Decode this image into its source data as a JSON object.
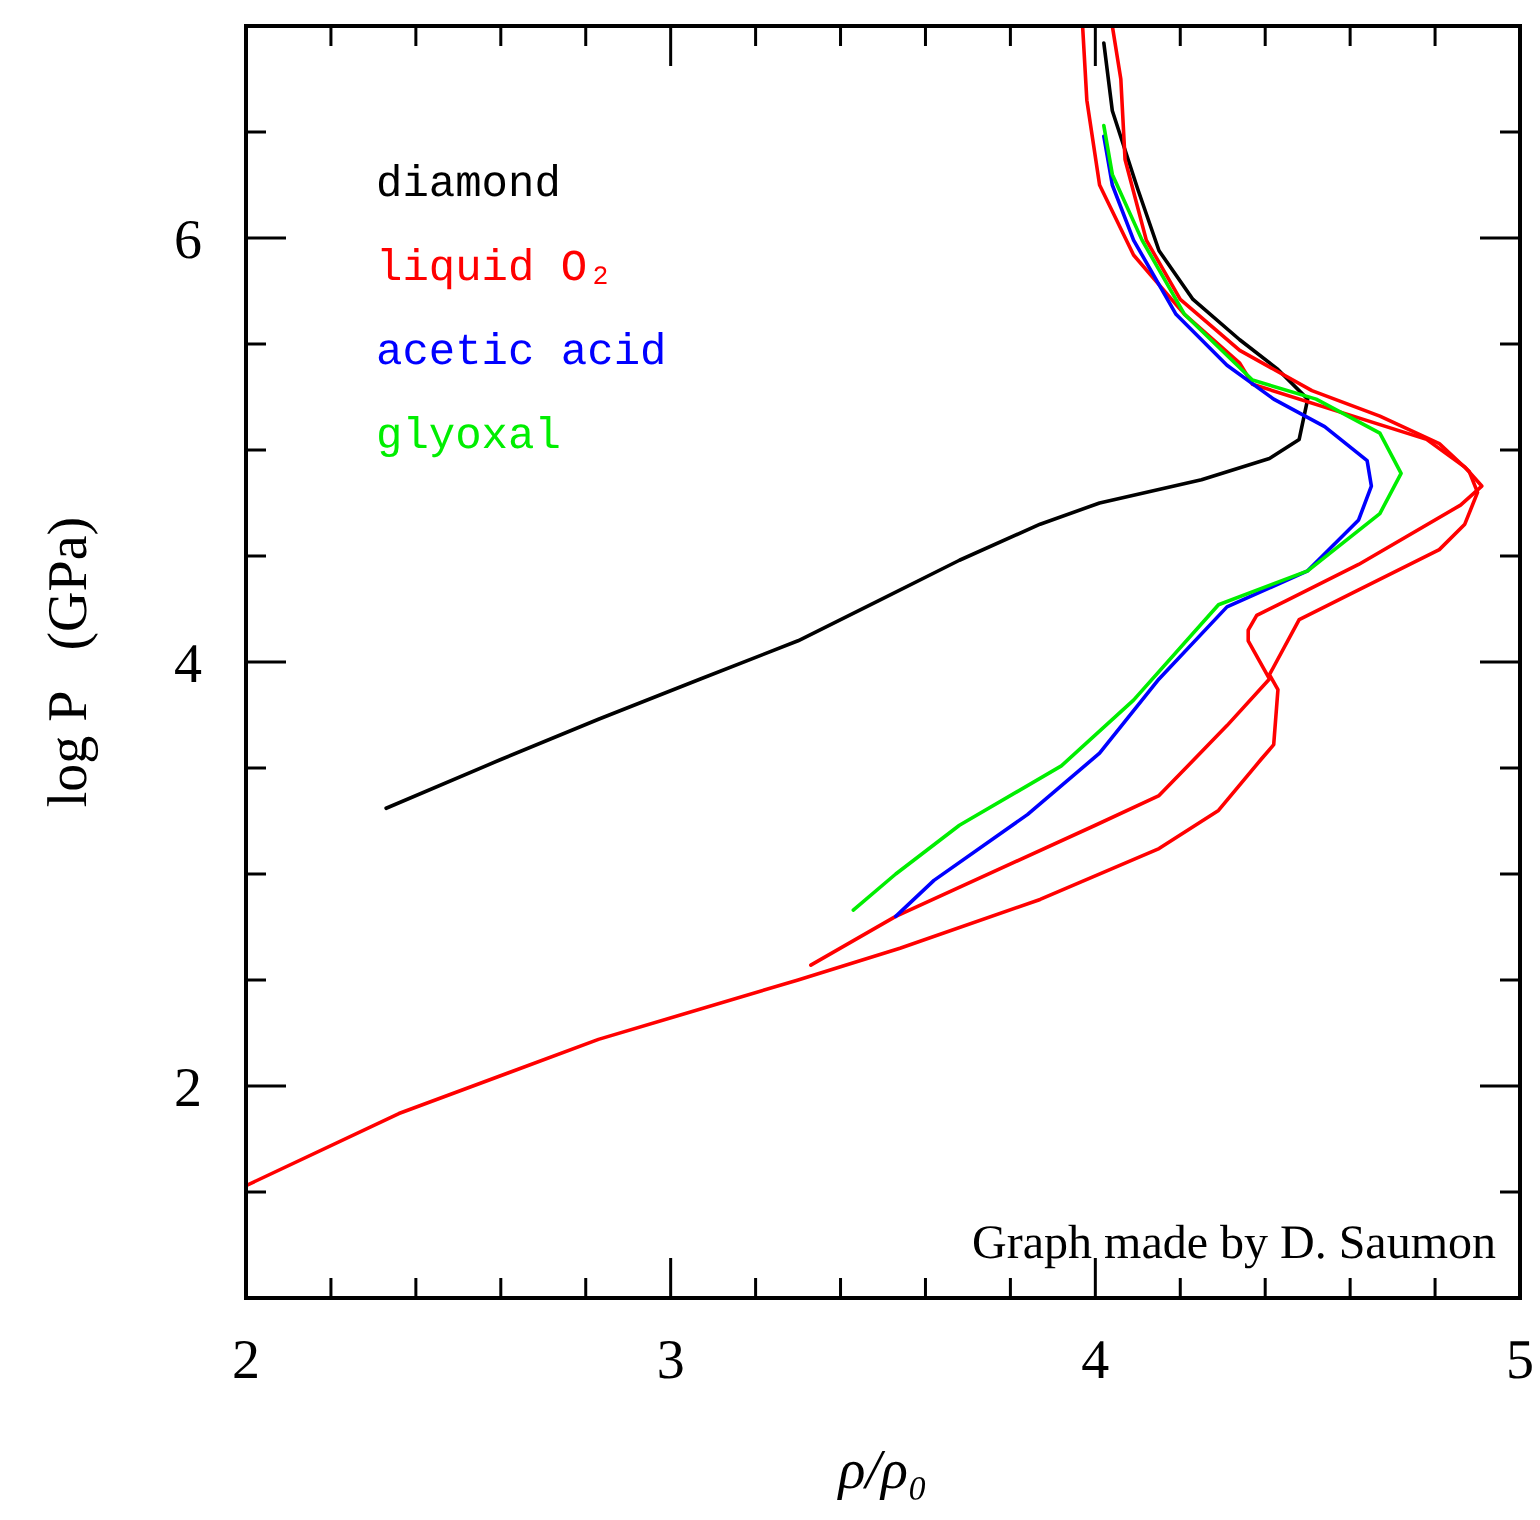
{
  "chart_data": {
    "type": "line",
    "xlabel": "ρ/ρ₀",
    "ylabel": "log P   (GPa)",
    "xlim": [
      2,
      5
    ],
    "ylim": [
      1,
      7
    ],
    "xticks": [
      2,
      {
        "value": 2.2,
        "label": null
      },
      {
        "value": 2.4,
        "label": null
      },
      {
        "value": 2.6,
        "label": null
      },
      {
        "value": 2.8,
        "label": null
      },
      3,
      {
        "value": 3.2,
        "label": null
      },
      {
        "value": 3.4,
        "label": null
      },
      {
        "value": 3.6,
        "label": null
      },
      {
        "value": 3.8,
        "label": null
      },
      4,
      {
        "value": 4.2,
        "label": null
      },
      {
        "value": 4.4,
        "label": null
      },
      {
        "value": 4.6,
        "label": null
      },
      {
        "value": 4.8,
        "label": null
      },
      5
    ],
    "yticks": [
      {
        "value": 1.5,
        "label": null
      },
      2,
      {
        "value": 2.5,
        "label": null
      },
      {
        "value": 3,
        "label": null
      },
      {
        "value": 3.5,
        "label": null
      },
      4,
      {
        "value": 4.5,
        "label": null
      },
      {
        "value": 5,
        "label": null
      },
      {
        "value": 5.5,
        "label": null
      },
      6,
      {
        "value": 6.5,
        "label": null
      }
    ],
    "grid": false,
    "legend": "top left",
    "marker": "none",
    "line_style": "solid",
    "annotations": [
      "Graph made by D. Saumon"
    ],
    "series": [
      {
        "name": "diamond",
        "color": "#000000",
        "x": [
          2.33,
          2.6,
          2.83,
          3.07,
          3.3,
          3.49,
          3.68,
          3.87,
          4.01,
          4.25,
          4.41,
          4.48,
          4.5,
          4.43,
          4.34,
          4.23,
          4.15,
          4.1,
          4.04,
          4.02
        ],
        "values": [
          3.31,
          3.54,
          3.73,
          3.92,
          4.1,
          4.29,
          4.48,
          4.65,
          4.75,
          4.86,
          4.96,
          5.05,
          5.24,
          5.38,
          5.52,
          5.71,
          5.94,
          6.23,
          6.6,
          6.92
        ]
      },
      {
        "name": "liquid O₂",
        "color": "#ff0000",
        "x": [
          2.0,
          2.36,
          2.83,
          3.3,
          3.54,
          3.87,
          4.15,
          4.29,
          4.39,
          4.42,
          4.43,
          4.41,
          4.48,
          4.62,
          4.81,
          4.87,
          4.9,
          4.88,
          4.81,
          4.67,
          4.51,
          4.34,
          4.2,
          4.12,
          4.07,
          4.06,
          4.04
        ],
        "values": [
          1.53,
          1.87,
          2.22,
          2.5,
          2.65,
          2.88,
          3.12,
          3.3,
          3.54,
          3.61,
          3.87,
          3.94,
          4.2,
          4.34,
          4.53,
          4.65,
          4.8,
          4.9,
          5.03,
          5.16,
          5.28,
          5.47,
          5.71,
          5.99,
          6.37,
          6.75,
          7.0
        ]
      },
      {
        "color": "#ff0000",
        "x": [
          3.33,
          3.53,
          4.0,
          4.15,
          4.31,
          4.41,
          4.36,
          4.36,
          4.38,
          4.45,
          4.62,
          4.86,
          4.91,
          4.87,
          4.78,
          4.37,
          4.34,
          4.21,
          4.09,
          4.01,
          3.98,
          3.97
        ],
        "values": [
          2.57,
          2.8,
          3.23,
          3.37,
          3.7,
          3.92,
          4.1,
          4.15,
          4.22,
          4.29,
          4.46,
          4.74,
          4.83,
          4.92,
          5.05,
          5.31,
          5.41,
          5.64,
          5.92,
          6.25,
          6.65,
          7.0
        ]
      },
      {
        "name": "acetic acid",
        "color": "#0000ff",
        "x": [
          3.53,
          3.62,
          3.84,
          4.01,
          4.15,
          4.31,
          4.5,
          4.62,
          4.65,
          4.64,
          4.54,
          4.42,
          4.31,
          4.19,
          4.09,
          4.04,
          4.02
        ],
        "values": [
          2.8,
          2.97,
          3.28,
          3.57,
          3.92,
          4.26,
          4.43,
          4.67,
          4.83,
          4.95,
          5.11,
          5.24,
          5.4,
          5.64,
          5.99,
          6.25,
          6.48
        ]
      },
      {
        "name": "glyoxal",
        "color": "#00ee00",
        "x": [
          3.43,
          3.53,
          3.68,
          3.92,
          4.09,
          4.29,
          4.5,
          4.67,
          4.72,
          4.67,
          4.52,
          4.37,
          4.21,
          4.11,
          4.04,
          4.02
        ],
        "values": [
          2.83,
          3.0,
          3.23,
          3.51,
          3.82,
          4.27,
          4.43,
          4.7,
          4.89,
          5.08,
          5.24,
          5.33,
          5.64,
          5.99,
          6.3,
          6.53
        ]
      }
    ]
  }
}
